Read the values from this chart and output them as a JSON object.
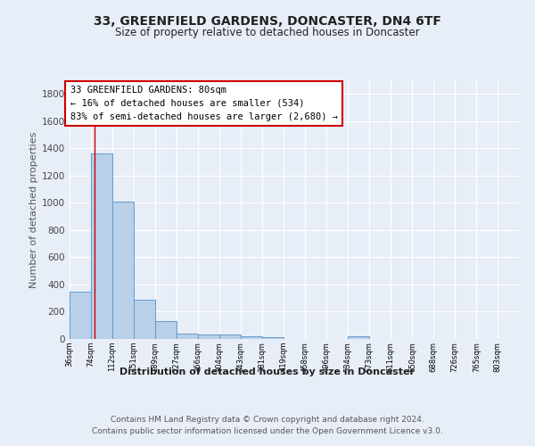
{
  "title1": "33, GREENFIELD GARDENS, DONCASTER, DN4 6TF",
  "title2": "Size of property relative to detached houses in Doncaster",
  "xlabel": "Distribution of detached houses by size in Doncaster",
  "ylabel": "Number of detached properties",
  "bin_labels": [
    "36sqm",
    "74sqm",
    "112sqm",
    "151sqm",
    "189sqm",
    "227sqm",
    "266sqm",
    "304sqm",
    "343sqm",
    "381sqm",
    "419sqm",
    "458sqm",
    "496sqm",
    "534sqm",
    "573sqm",
    "611sqm",
    "650sqm",
    "688sqm",
    "726sqm",
    "765sqm",
    "803sqm"
  ],
  "bin_edges": [
    36,
    74,
    112,
    151,
    189,
    227,
    266,
    304,
    343,
    381,
    419,
    458,
    496,
    534,
    573,
    611,
    650,
    688,
    726,
    765,
    803
  ],
  "bar_heights": [
    350,
    1360,
    1010,
    290,
    130,
    40,
    35,
    30,
    20,
    15,
    0,
    0,
    0,
    20,
    0,
    0,
    0,
    0,
    0,
    0,
    0
  ],
  "bar_color": "#b8d0e8",
  "bar_edge_color": "#6699cc",
  "vline_x": 80,
  "vline_color": "#cc0000",
  "annotation_text": "33 GREENFIELD GARDENS: 80sqm\n← 16% of detached houses are smaller (534)\n83% of semi-detached houses are larger (2,680) →",
  "annotation_box_facecolor": "#ffffff",
  "annotation_box_edgecolor": "#cc0000",
  "ylim": [
    0,
    1900
  ],
  "yticks": [
    0,
    200,
    400,
    600,
    800,
    1000,
    1200,
    1400,
    1600,
    1800
  ],
  "bg_color": "#e8eef8",
  "plot_bg_color": "#e8eef8",
  "grid_color": "#ffffff",
  "footer1": "Contains HM Land Registry data © Crown copyright and database right 2024.",
  "footer2": "Contains public sector information licensed under the Open Government Licence v3.0."
}
